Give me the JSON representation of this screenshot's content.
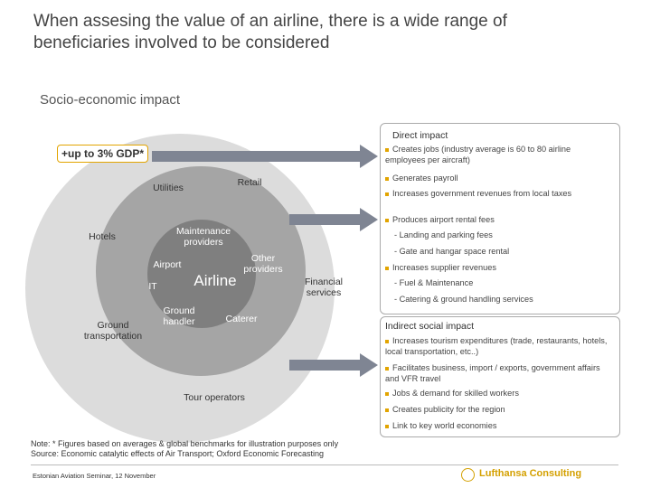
{
  "title": "When assesing the value of an airline, there is a wide range of beneficiaries involved to be considered",
  "subtitle": "Socio-economic impact",
  "gdp_badge": "+up to 3% GDP*",
  "diagram": {
    "outer_labels": {
      "hotels": "Hotels",
      "ground_transportation": "Ground transportation",
      "financial_services": "Financial services",
      "tour_operators": "Tour operators"
    },
    "middle_labels": {
      "utilities": "Utilities",
      "retail": "Retail",
      "maintenance_providers": "Maintenance providers",
      "airport": "Airport",
      "other_providers": "Other providers",
      "it": "IT",
      "ground_handler": "Ground handler",
      "caterer": "Caterer"
    },
    "center": "Airline"
  },
  "direct_impact": {
    "title": "Direct impact",
    "items": [
      "Creates jobs (industry average is 60 to 80 airline employees per aircraft)",
      "Generates payroll",
      "Increases government revenues from local taxes",
      "Produces airport rental fees"
    ],
    "rental_subitems": [
      "- Landing and parking fees",
      "- Gate and hangar space rental"
    ],
    "supplier_item": "Increases supplier revenues",
    "supplier_subitems": [
      "- Fuel & Maintenance",
      "- Catering & ground handling services"
    ]
  },
  "indirect_impact": {
    "title": "Indirect social impact",
    "items": [
      "Increases tourism expenditures (trade, restaurants, hotels, local transportation, etc..)",
      "Facilitates business, import / exports, government affairs and VFR travel",
      "Jobs & demand for skilled workers",
      "Creates publicity for the region",
      "Link to key world economies"
    ]
  },
  "note_line1": "Note: * Figures based on averages & global benchmarks for illustration purposes only",
  "note_line2": "Source: Economic catalytic effects of Air Transport; Oxford Economic Forecasting",
  "footer": "Estonian Aviation Seminar, 12 November",
  "brand": "Lufthansa Consulting",
  "colors": {
    "accent": "#e2a400",
    "outer_ring": "#dcdcdc",
    "middle_ring": "#a5a5a5",
    "core": "#7f7f7f",
    "arrow": "#7f8593"
  }
}
